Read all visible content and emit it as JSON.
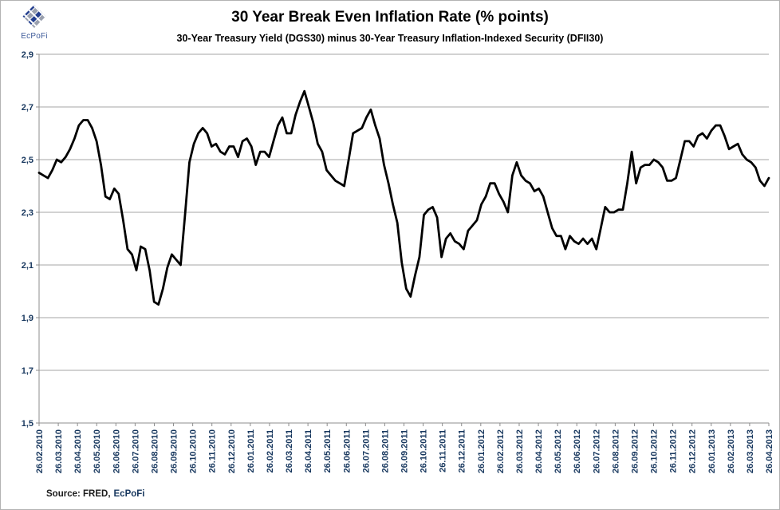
{
  "logo": {
    "text": "EcPoFi"
  },
  "header": {
    "title": "30 Year Break Even Inflation Rate (% points)",
    "subtitle": "30-Year Treasury Yield (DGS30) minus 30-Year Treasury Inflation-Indexed Security (DFII30)"
  },
  "source": {
    "prefix": "Source: FRED,",
    "brand": "EcPoFi"
  },
  "chart_data": {
    "type": "line",
    "title": "30 Year Break Even Inflation Rate (% points)",
    "subtitle": "30-Year Treasury Yield (DGS30) minus 30-Year Treasury Inflation-Indexed Security (DFII30)",
    "xlabel": "",
    "ylabel": "",
    "ylim": [
      1.5,
      2.9
    ],
    "y_tick_step": 0.2,
    "y_tick_labels": [
      "2,9",
      "2,7",
      "2,5",
      "2,3",
      "2,1",
      "1,9",
      "1,7",
      "1,5"
    ],
    "grid": "horizontal",
    "legend": "none",
    "decimal_separator": ",",
    "categories": [
      "26.02.2010",
      "26.03.2010",
      "26.04.2010",
      "26.05.2010",
      "26.06.2010",
      "26.07.2010",
      "26.08.2010",
      "26.09.2010",
      "26.10.2010",
      "26.11.2010",
      "26.12.2010",
      "26.01.2011",
      "26.02.2011",
      "26.03.2011",
      "26.04.2011",
      "26.05.2011",
      "26.06.2011",
      "26.07.2011",
      "26.08.2011",
      "26.09.2011",
      "26.10.2011",
      "26.11.2011",
      "26.12.2011",
      "26.01.2012",
      "26.02.2012",
      "26.03.2012",
      "26.04.2012",
      "26.05.2012",
      "26.06.2012",
      "26.07.2012",
      "26.08.2012",
      "26.09.2012",
      "26.10.2012",
      "26.11.2012",
      "26.12.2012",
      "26.01.2013",
      "26.02.2013",
      "26.03.2013",
      "26.04.2013"
    ],
    "series": [
      {
        "name": "30 Year Break Even Inflation Rate",
        "x_unit": "weekly from 26.02.2010 to 26.04.2013",
        "values": [
          2.45,
          2.44,
          2.43,
          2.46,
          2.5,
          2.49,
          2.51,
          2.54,
          2.58,
          2.63,
          2.65,
          2.65,
          2.62,
          2.57,
          2.48,
          2.36,
          2.35,
          2.39,
          2.37,
          2.27,
          2.16,
          2.14,
          2.08,
          2.17,
          2.16,
          2.08,
          1.96,
          1.95,
          2.01,
          2.09,
          2.14,
          2.12,
          2.1,
          2.29,
          2.49,
          2.56,
          2.6,
          2.62,
          2.6,
          2.55,
          2.56,
          2.53,
          2.52,
          2.55,
          2.55,
          2.51,
          2.57,
          2.58,
          2.55,
          2.48,
          2.53,
          2.53,
          2.51,
          2.57,
          2.63,
          2.66,
          2.6,
          2.6,
          2.67,
          2.72,
          2.76,
          2.7,
          2.64,
          2.56,
          2.53,
          2.46,
          2.44,
          2.42,
          2.41,
          2.4,
          2.5,
          2.6,
          2.61,
          2.62,
          2.66,
          2.69,
          2.63,
          2.58,
          2.48,
          2.41,
          2.33,
          2.26,
          2.11,
          2.01,
          1.98,
          2.06,
          2.13,
          2.29,
          2.31,
          2.32,
          2.28,
          2.13,
          2.2,
          2.22,
          2.19,
          2.18,
          2.16,
          2.23,
          2.25,
          2.27,
          2.33,
          2.36,
          2.41,
          2.41,
          2.37,
          2.34,
          2.3,
          2.44,
          2.49,
          2.44,
          2.42,
          2.41,
          2.38,
          2.39,
          2.36,
          2.3,
          2.24,
          2.21,
          2.21,
          2.16,
          2.21,
          2.19,
          2.18,
          2.2,
          2.18,
          2.2,
          2.16,
          2.24,
          2.32,
          2.3,
          2.3,
          2.31,
          2.31,
          2.41,
          2.53,
          2.41,
          2.47,
          2.48,
          2.48,
          2.5,
          2.49,
          2.47,
          2.42,
          2.42,
          2.43,
          2.5,
          2.57,
          2.57,
          2.55,
          2.59,
          2.6,
          2.58,
          2.61,
          2.63,
          2.63,
          2.59,
          2.54,
          2.55,
          2.56,
          2.52,
          2.5,
          2.49,
          2.47,
          2.42,
          2.4,
          2.43
        ]
      }
    ],
    "line_color": "#000000",
    "grid_color": "#a6a6a6",
    "axis_color": "#8c8c8c",
    "label_color": "#17375e"
  }
}
